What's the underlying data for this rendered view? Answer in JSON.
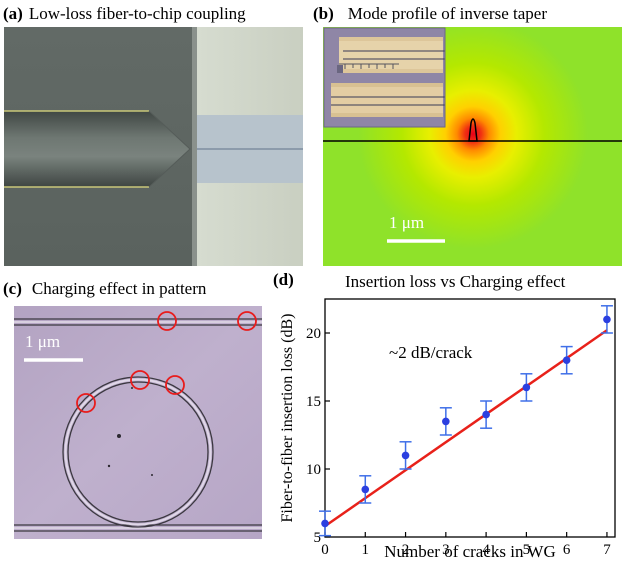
{
  "panels": {
    "a": {
      "letter": "(a)",
      "title": "Low-loss fiber-to-chip coupling"
    },
    "b": {
      "letter": "(b)",
      "title": "Mode profile of inverse taper",
      "scale_label": "1 μm"
    },
    "c": {
      "letter": "(c)",
      "title": "Charging effect in pattern",
      "scale_label": "1 μm"
    },
    "d": {
      "letter": "(d)",
      "title": "Insertion loss vs Charging effect",
      "annotation": "~2 dB/crack"
    }
  },
  "colors": {
    "fit_line": "#e8211a",
    "points": "#2b3fe0",
    "error_bars": "#3f6fe8",
    "crack_marker": "#e81c1c"
  },
  "chart_data": {
    "type": "scatter",
    "title": "Insertion loss vs Charging effect",
    "xlabel": "Number of cracks in WG",
    "ylabel": "Fiber-to-fiber insertion loss (dB)",
    "xlim": [
      0,
      7.2
    ],
    "ylim": [
      5,
      22.5
    ],
    "xticks": [
      0,
      1,
      2,
      3,
      4,
      5,
      6,
      7
    ],
    "yticks": [
      5,
      10,
      15,
      20
    ],
    "points": [
      {
        "x": 0,
        "y": 6.0,
        "err": 0.9
      },
      {
        "x": 1,
        "y": 8.5,
        "err": 1.0
      },
      {
        "x": 2,
        "y": 11.0,
        "err": 1.0
      },
      {
        "x": 3,
        "y": 13.5,
        "err": 1.0
      },
      {
        "x": 4,
        "y": 14.0,
        "err": 1.0
      },
      {
        "x": 5,
        "y": 16.0,
        "err": 1.0
      },
      {
        "x": 6,
        "y": 18.0,
        "err": 1.0
      },
      {
        "x": 7,
        "y": 21.0,
        "err": 1.0
      }
    ],
    "fit": {
      "x": [
        0,
        7
      ],
      "y": [
        5.8,
        20.2
      ]
    },
    "annotation": "~2 dB/crack"
  }
}
